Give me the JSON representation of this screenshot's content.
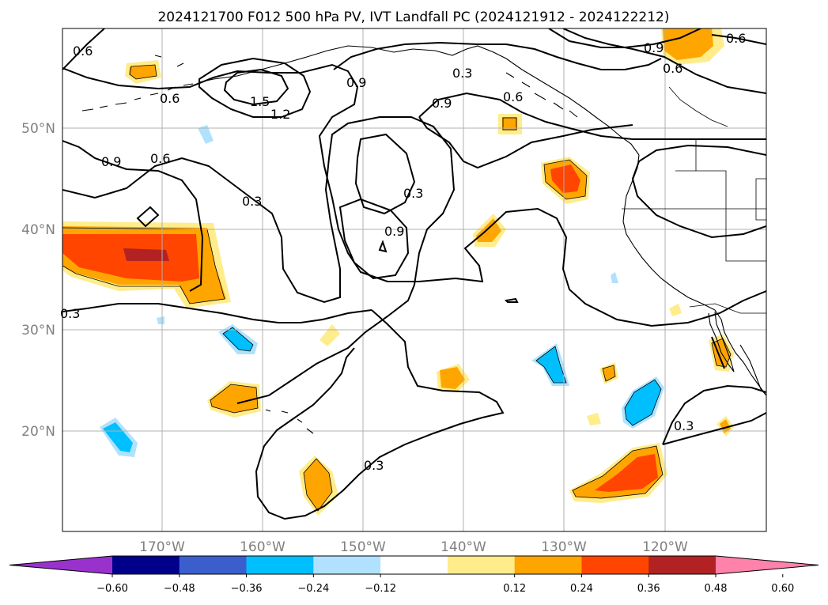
{
  "title": "2024121700 F012 500 hPa PV, IVT Landfall PC (2024121912 - 2024122212)",
  "longitude_labels": [
    "170°W",
    "160°W",
    "150°W",
    "140°W",
    "130°W",
    "120°W"
  ],
  "latitude_labels": [
    "50°N",
    "40°N",
    "30°N",
    "20°N"
  ],
  "contour_labels": [
    "0.6",
    "0.6",
    "0.9",
    "0.6",
    "1.5",
    "1.2",
    "0.9",
    "0.3",
    "0.9",
    "0.6",
    "0.9",
    "0.6",
    "0.6",
    "0.3",
    "0.3",
    "0.9",
    "0.3",
    "0.3",
    "0.3"
  ],
  "colorbar": {
    "ticks": [
      "−0.60",
      "−0.48",
      "−0.36",
      "−0.24",
      "−0.12",
      "0.12",
      "0.24",
      "0.36",
      "0.48",
      "0.60"
    ],
    "colors": [
      "#9932cc",
      "#00008b",
      "#3a5fcd",
      "#00bfff",
      "#b0e2ff",
      "#ffffff",
      "#ffec8b",
      "#ffa500",
      "#ff4500",
      "#b22222",
      "#ff82ab"
    ]
  },
  "shading_colors": {
    "neg_light": "#b0e2ff",
    "neg_mid": "#00bfff",
    "pos_light": "#ffec8b",
    "pos_mid": "#ffa500",
    "pos_strong": "#ff4500",
    "pos_max": "#b22222"
  }
}
